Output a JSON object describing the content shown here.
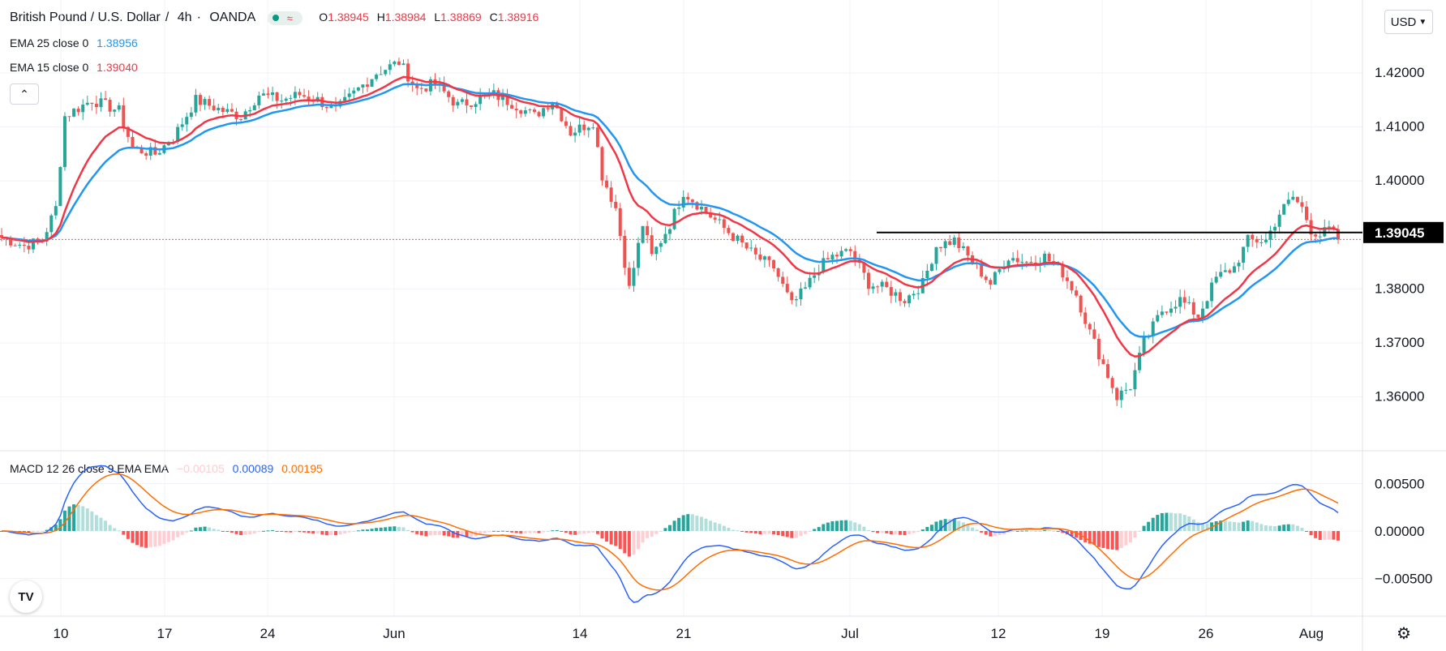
{
  "header": {
    "symbol": "British Pound / U.S. Dollar",
    "interval": "4h",
    "source": "OANDA",
    "ohlc": {
      "o_label": "O",
      "o": "1.38945",
      "h_label": "H",
      "h": "1.38984",
      "l_label": "L",
      "l": "1.38869",
      "c_label": "C",
      "c": "1.38916"
    },
    "currency_button": "USD",
    "collapse_icon": "chevron-up-icon",
    "status_icon": "wave-icon"
  },
  "indicators": {
    "ema25": {
      "label": "EMA 25 close 0",
      "value": "1.38956",
      "color": "#2196f3"
    },
    "ema15": {
      "label": "EMA 15 close 0",
      "value": "1.39040",
      "color": "#f23645"
    },
    "macd": {
      "label": "MACD 12 26 close 9 EMA EMA",
      "hist_value": "−0.00105",
      "macd_value": "0.00089",
      "signal_value": "0.00195",
      "macd_color": "#2962ff",
      "signal_color": "#ff6d00",
      "hist_pos_strong": "#26a69a",
      "hist_pos_weak": "#b2dfdb",
      "hist_neg_strong": "#ff5252",
      "hist_neg_weak": "#ffcdd2"
    }
  },
  "chart_data": {
    "type": "candlestick",
    "x_tick_labels": [
      "10",
      "17",
      "24",
      "Jun",
      "14",
      "21",
      "Jul",
      "12",
      "19",
      "26",
      "Aug"
    ],
    "price_axis": {
      "ylim": [
        1.356,
        1.425
      ],
      "tick_labels": [
        "1.42000",
        "1.41000",
        "1.40000",
        "1.38000",
        "1.37000",
        "1.36000"
      ]
    },
    "horizontal_line": {
      "value": 1.39045,
      "label": "1.39045"
    },
    "last_price": 1.38916,
    "price_path": [
      [
        0,
        1.3895
      ],
      [
        5,
        1.388
      ],
      [
        9,
        1.389
      ],
      [
        12,
        1.395
      ],
      [
        14,
        1.412
      ],
      [
        20,
        1.415
      ],
      [
        26,
        1.413
      ],
      [
        29,
        1.406
      ],
      [
        34,
        1.405
      ],
      [
        38,
        1.408
      ],
      [
        43,
        1.415
      ],
      [
        49,
        1.413
      ],
      [
        53,
        1.412
      ],
      [
        57,
        1.416
      ],
      [
        62,
        1.415
      ],
      [
        66,
        1.416
      ],
      [
        70,
        1.415
      ],
      [
        74,
        1.413
      ],
      [
        79,
        1.417
      ],
      [
        83,
        1.42
      ],
      [
        88,
        1.422
      ],
      [
        92,
        1.417
      ],
      [
        96,
        1.418
      ],
      [
        101,
        1.414
      ],
      [
        105,
        1.415
      ],
      [
        109,
        1.416
      ],
      [
        114,
        1.414
      ],
      [
        118,
        1.412
      ],
      [
        122,
        1.415
      ],
      [
        126,
        1.409
      ],
      [
        131,
        1.411
      ],
      [
        133,
        1.401
      ],
      [
        136,
        1.395
      ],
      [
        139,
        1.38
      ],
      [
        142,
        1.392
      ],
      [
        144,
        1.386
      ],
      [
        148,
        1.392
      ],
      [
        151,
        1.398
      ],
      [
        155,
        1.395
      ],
      [
        159,
        1.392
      ],
      [
        163,
        1.389
      ],
      [
        167,
        1.386
      ],
      [
        171,
        1.384
      ],
      [
        175,
        1.377
      ],
      [
        178,
        1.38
      ],
      [
        181,
        1.384
      ],
      [
        184,
        1.386
      ],
      [
        188,
        1.387
      ],
      [
        192,
        1.381
      ],
      [
        196,
        1.38
      ],
      [
        200,
        1.378
      ],
      [
        204,
        1.381
      ],
      [
        207,
        1.388
      ],
      [
        211,
        1.389
      ],
      [
        215,
        1.385
      ],
      [
        219,
        1.381
      ],
      [
        223,
        1.386
      ],
      [
        227,
        1.385
      ],
      [
        231,
        1.386
      ],
      [
        235,
        1.383
      ],
      [
        238,
        1.379
      ],
      [
        241,
        1.372
      ],
      [
        244,
        1.366
      ],
      [
        247,
        1.36
      ],
      [
        250,
        1.362
      ],
      [
        253,
        1.37
      ],
      [
        257,
        1.376
      ],
      [
        261,
        1.378
      ],
      [
        265,
        1.375
      ],
      [
        269,
        1.382
      ],
      [
        273,
        1.384
      ],
      [
        276,
        1.389
      ],
      [
        280,
        1.389
      ],
      [
        283,
        1.394
      ],
      [
        286,
        1.397
      ],
      [
        288,
        1.395
      ],
      [
        290,
        1.391
      ],
      [
        292,
        1.39
      ],
      [
        294,
        1.391
      ],
      [
        296,
        1.3892
      ]
    ],
    "candle_count": 297,
    "ema15": {
      "name": "EMA 15 close 0",
      "period": 15,
      "last": 1.3904
    },
    "ema25": {
      "name": "EMA 25 close 0",
      "period": 25,
      "last": 1.38956
    },
    "macd_panel": {
      "fast": 12,
      "slow": 26,
      "signal": 9,
      "ylim": [
        -0.0075,
        0.0065
      ],
      "tick_labels": [
        "0.00500",
        "0.00000",
        "−0.00500"
      ],
      "last": {
        "histogram": -0.00105,
        "macd": 0.00089,
        "signal": 0.00195
      }
    }
  }
}
